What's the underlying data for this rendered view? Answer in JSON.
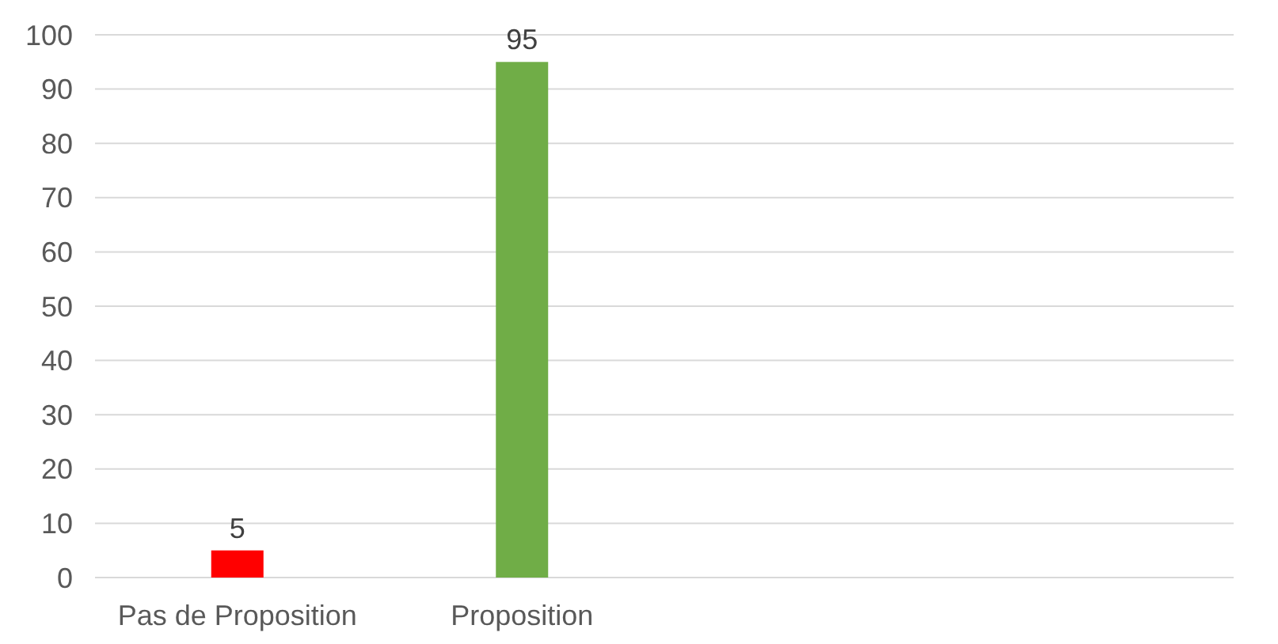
{
  "chart_data": {
    "type": "bar",
    "categories": [
      "Pas de Proposition",
      "Proposition",
      null,
      null
    ],
    "values": [
      5,
      95,
      null,
      null
    ],
    "colors": [
      "#ff0000",
      "#70ad47",
      null,
      null
    ],
    "ylim": [
      0,
      100
    ],
    "yticks": [
      0,
      10,
      20,
      30,
      40,
      50,
      60,
      70,
      80,
      90,
      100
    ],
    "grid": "y",
    "data_labels": true
  }
}
